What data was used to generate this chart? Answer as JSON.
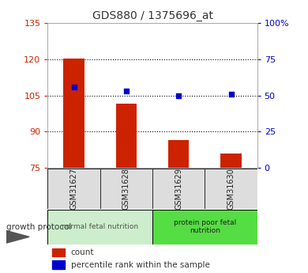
{
  "title": "GDS880 / 1375696_at",
  "samples": [
    "GSM31627",
    "GSM31628",
    "GSM31629",
    "GSM31630"
  ],
  "bar_values": [
    120.5,
    101.5,
    86.5,
    81.0
  ],
  "bar_bottom": 75,
  "scatter_pct": [
    56,
    53,
    50,
    51
  ],
  "left_yticks": [
    75,
    90,
    105,
    120,
    135
  ],
  "right_yticks": [
    0,
    25,
    50,
    75,
    100
  ],
  "right_ylabels": [
    "0",
    "25",
    "50",
    "75",
    "100%"
  ],
  "ylim": [
    75,
    135
  ],
  "right_ylim": [
    0,
    100
  ],
  "bar_color": "#cc2200",
  "scatter_color": "#0000cc",
  "left_tick_color": "#cc2200",
  "right_tick_color": "#0000cc",
  "group1_label": "normal fetal nutrition",
  "group2_label": "protein poor fetal\nnutrition",
  "group1_color": "#cceecc",
  "group2_color": "#55dd44",
  "growth_protocol_label": "growth protocol",
  "legend_bar_label": "count",
  "legend_scatter_label": "percentile rank within the sample",
  "sample_box_color": "#dddddd",
  "bg_color": "#ffffff",
  "title_color": "#333333"
}
